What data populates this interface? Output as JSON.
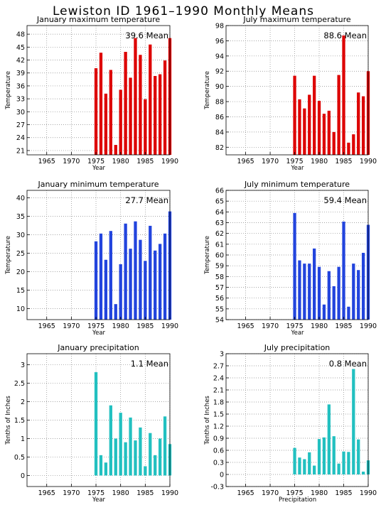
{
  "page": {
    "title": "Lewiston ID   1961–1990 Monthly Means"
  },
  "colors": {
    "red": "#dd0000",
    "blue": "#2244dd",
    "teal": "#22c0c0",
    "grid": "#888888"
  },
  "chart_data": [
    {
      "type": "bar",
      "title": "January maximum temperature",
      "xlabel": "Year",
      "ylabel": "Temperature",
      "mean_label": "39.6  Mean",
      "color": "red",
      "ylim": [
        20,
        50
      ],
      "yticks": [
        21,
        24,
        27,
        30,
        33,
        36,
        39,
        42,
        45,
        48
      ],
      "xlim": [
        1961,
        1990
      ],
      "xticks": [
        1965,
        1970,
        1975,
        1980,
        1985,
        1990
      ],
      "years": [
        1975,
        1976,
        1977,
        1978,
        1979,
        1980,
        1981,
        1982,
        1983,
        1984,
        1985,
        1986,
        1987,
        1988,
        1989,
        1990
      ],
      "values": [
        40.1,
        43.7,
        34.2,
        39.7,
        22.3,
        35.1,
        43.9,
        37.9,
        47.1,
        43.2,
        32.9,
        45.6,
        38.3,
        38.7,
        41.9,
        47.1
      ]
    },
    {
      "type": "bar",
      "title": "July maximum temperature",
      "xlabel": "Year",
      "ylabel": "Temperature",
      "mean_label": "88.6  Mean",
      "color": "red",
      "ylim": [
        81,
        98
      ],
      "yticks": [
        82,
        84,
        86,
        88,
        90,
        92,
        94,
        96,
        98
      ],
      "xlim": [
        1961,
        1990
      ],
      "xticks": [
        1965,
        1970,
        1975,
        1980,
        1985,
        1990
      ],
      "years": [
        1975,
        1976,
        1977,
        1978,
        1979,
        1980,
        1981,
        1982,
        1983,
        1984,
        1985,
        1986,
        1987,
        1988,
        1989,
        1990
      ],
      "values": [
        91.4,
        88.3,
        87.1,
        88.9,
        91.4,
        88.1,
        86.4,
        86.8,
        84.0,
        91.5,
        96.7,
        82.6,
        83.7,
        89.2,
        88.7,
        92.0
      ]
    },
    {
      "type": "bar",
      "title": "January minimum temperature",
      "xlabel": "Year",
      "ylabel": "Temperature",
      "mean_label": "27.7  Mean",
      "color": "blue",
      "ylim": [
        7,
        42
      ],
      "yticks": [
        10,
        15,
        20,
        25,
        30,
        35,
        40
      ],
      "xlim": [
        1961,
        1990
      ],
      "xticks": [
        1965,
        1970,
        1975,
        1980,
        1985,
        1990
      ],
      "years": [
        1975,
        1976,
        1977,
        1978,
        1979,
        1980,
        1981,
        1982,
        1983,
        1984,
        1985,
        1986,
        1987,
        1988,
        1989,
        1990
      ],
      "values": [
        28.2,
        30.3,
        23.2,
        31.0,
        11.2,
        22.0,
        33.0,
        26.2,
        33.6,
        28.6,
        22.9,
        32.4,
        25.7,
        27.5,
        30.3,
        36.3
      ]
    },
    {
      "type": "bar",
      "title": "July minimum temperature",
      "xlabel": "Year",
      "ylabel": "Temperature",
      "mean_label": "59.4  Mean",
      "color": "blue",
      "ylim": [
        54,
        66
      ],
      "yticks": [
        54,
        55,
        56,
        57,
        58,
        59,
        60,
        61,
        62,
        63,
        64,
        65,
        66
      ],
      "xlim": [
        1961,
        1990
      ],
      "xticks": [
        1965,
        1970,
        1975,
        1980,
        1985,
        1990
      ],
      "years": [
        1975,
        1976,
        1977,
        1978,
        1979,
        1980,
        1981,
        1982,
        1983,
        1984,
        1985,
        1986,
        1987,
        1988,
        1989,
        1990
      ],
      "values": [
        63.9,
        59.5,
        59.2,
        59.2,
        60.6,
        58.9,
        55.4,
        58.5,
        57.1,
        58.9,
        63.1,
        55.2,
        59.2,
        58.6,
        60.2,
        62.8
      ]
    },
    {
      "type": "bar",
      "title": "January precipitation",
      "xlabel": "Year",
      "ylabel": "Tenths of Inches",
      "mean_label": "1.1  Mean",
      "color": "teal",
      "ylim": [
        -0.3,
        3.3
      ],
      "yticks": [
        0,
        0.5,
        1,
        1.5,
        2,
        2.5,
        3
      ],
      "xlim": [
        1961,
        1990
      ],
      "xticks": [
        1965,
        1970,
        1975,
        1980,
        1985,
        1990
      ],
      "years": [
        1975,
        1976,
        1977,
        1978,
        1979,
        1980,
        1981,
        1982,
        1983,
        1984,
        1985,
        1986,
        1987,
        1988,
        1989,
        1990
      ],
      "values": [
        2.8,
        0.55,
        0.35,
        1.9,
        1.0,
        1.7,
        0.9,
        1.57,
        0.95,
        1.3,
        0.25,
        1.15,
        0.55,
        1.0,
        1.6,
        0.85
      ]
    },
    {
      "type": "bar",
      "title": "July precipitation",
      "xlabel": "Precipitation",
      "ylabel": "Tenths of Inches",
      "mean_label": "0.8  Mean",
      "color": "teal",
      "ylim": [
        -0.3,
        3.0
      ],
      "yticks": [
        -0.3,
        0,
        0.3,
        0.6,
        0.9,
        1.2,
        1.5,
        1.8,
        2.1,
        2.4,
        2.7,
        3
      ],
      "xlim": [
        1961,
        1990
      ],
      "xticks": [
        1965,
        1970,
        1975,
        1980,
        1985,
        1990
      ],
      "years": [
        1975,
        1976,
        1977,
        1978,
        1979,
        1980,
        1981,
        1982,
        1983,
        1984,
        1985,
        1986,
        1987,
        1988,
        1989,
        1990
      ],
      "values": [
        0.66,
        0.42,
        0.38,
        0.55,
        0.22,
        0.88,
        0.92,
        1.74,
        0.95,
        0.27,
        0.57,
        0.56,
        2.62,
        0.87,
        0.07,
        0.35
      ]
    }
  ]
}
